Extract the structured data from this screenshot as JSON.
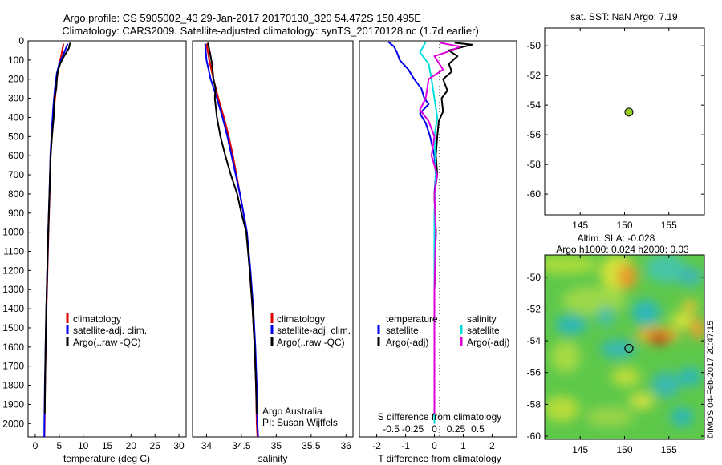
{
  "header": {
    "line1": "Argo profile: CS 5905002_43 29-Jan-2017 20170130_320 54.472S 150.495E",
    "line2": "Climatology: CARS2009. Satellite-adjusted climatology: synTS_20170128.nc (1.7d earlier)"
  },
  "depth_axis": {
    "ticks": [
      "0",
      "100",
      "200",
      "300",
      "400",
      "500",
      "600",
      "700",
      "800",
      "900",
      "1000",
      "1100",
      "1200",
      "1300",
      "1400",
      "1500",
      "1600",
      "1700",
      "1800",
      "1900",
      "2000"
    ]
  },
  "chart_data": [
    {
      "type": "line",
      "name": "temperature",
      "xlabel": "temperature (deg C)",
      "xlim": [
        -1.5,
        31.5
      ],
      "ylim": [
        0,
        2070
      ],
      "xticks": [
        0,
        5,
        10,
        15,
        20,
        25,
        30
      ],
      "xtick_labels": [
        "0",
        "5",
        "10",
        "15",
        "20",
        "25",
        "30"
      ],
      "legend": [
        "climatology",
        "satellite-adj. clim.",
        "Argo(..raw -QC)"
      ],
      "series": [
        {
          "name": "climatology",
          "color": "#dd0000",
          "points": [
            [
              5.9,
              15
            ],
            [
              5.4,
              80
            ],
            [
              4.9,
              130
            ],
            [
              4.6,
              180
            ],
            [
              4.3,
              260
            ],
            [
              3.95,
              350
            ],
            [
              3.6,
              450
            ],
            [
              3.2,
              600
            ],
            [
              3.0,
              800
            ],
            [
              2.75,
              1000
            ],
            [
              2.55,
              1200
            ],
            [
              2.35,
              1400
            ],
            [
              2.2,
              1600
            ],
            [
              2.05,
              1800
            ],
            [
              1.95,
              2000
            ],
            [
              1.92,
              2070
            ]
          ]
        },
        {
          "name": "satellite-adj. clim.",
          "color": "#0000ee",
          "points": [
            [
              6.8,
              15
            ],
            [
              5.8,
              75
            ],
            [
              5.0,
              120
            ],
            [
              4.5,
              170
            ],
            [
              4.1,
              250
            ],
            [
              3.75,
              350
            ],
            [
              3.5,
              450
            ],
            [
              3.15,
              600
            ],
            [
              2.95,
              800
            ],
            [
              2.7,
              1000
            ],
            [
              2.5,
              1200
            ],
            [
              2.3,
              1400
            ],
            [
              2.15,
              1600
            ],
            [
              2.0,
              1800
            ],
            [
              1.9,
              2000
            ],
            [
              1.88,
              2070
            ]
          ]
        },
        {
          "name": "Argo(..raw -QC)",
          "color": "#000000",
          "points": [
            [
              7.3,
              10
            ],
            [
              7.0,
              40
            ],
            [
              6.0,
              80
            ],
            [
              5.2,
              120
            ],
            [
              4.7,
              160
            ],
            [
              4.5,
              200
            ],
            [
              4.4,
              250
            ],
            [
              4.0,
              300
            ],
            [
              3.85,
              400
            ],
            [
              3.5,
              500
            ],
            [
              3.2,
              600
            ],
            [
              2.95,
              800
            ],
            [
              2.7,
              1000
            ],
            [
              2.5,
              1200
            ],
            [
              2.3,
              1400
            ],
            [
              2.15,
              1600
            ],
            [
              2.05,
              1800
            ],
            [
              1.98,
              1950
            ]
          ]
        }
      ]
    },
    {
      "type": "line",
      "name": "salinity",
      "xlabel": "salinity",
      "xlim": [
        33.8,
        36.1
      ],
      "ylim": [
        0,
        2070
      ],
      "xticks": [
        34,
        34.5,
        35,
        35.5,
        36
      ],
      "xtick_labels": [
        "34",
        "34.5",
        "35",
        "35.5",
        "36"
      ],
      "legend": [
        "climatology",
        "satellite-adj. clim.",
        "Argo(..raw -QC)"
      ],
      "annotations": [
        "Argo Australia",
        "PI: Susan Wijffels"
      ],
      "series": [
        {
          "name": "climatology",
          "color": "#dd0000",
          "points": [
            [
              34.0,
              15
            ],
            [
              34.04,
              100
            ],
            [
              34.1,
              200
            ],
            [
              34.17,
              300
            ],
            [
              34.25,
              400
            ],
            [
              34.32,
              500
            ],
            [
              34.38,
              600
            ],
            [
              34.43,
              700
            ],
            [
              34.48,
              800
            ],
            [
              34.53,
              900
            ],
            [
              34.58,
              1000
            ],
            [
              34.62,
              1200
            ],
            [
              34.66,
              1400
            ],
            [
              34.69,
              1600
            ],
            [
              34.71,
              1800
            ],
            [
              34.72,
              2000
            ],
            [
              34.73,
              2070
            ]
          ]
        },
        {
          "name": "satellite-adj. clim.",
          "color": "#0000ee",
          "points": [
            [
              33.98,
              15
            ],
            [
              34.0,
              100
            ],
            [
              34.06,
              200
            ],
            [
              34.15,
              300
            ],
            [
              34.23,
              400
            ],
            [
              34.3,
              500
            ],
            [
              34.36,
              600
            ],
            [
              34.42,
              700
            ],
            [
              34.48,
              800
            ],
            [
              34.53,
              900
            ],
            [
              34.58,
              1000
            ],
            [
              34.63,
              1200
            ],
            [
              34.67,
              1400
            ],
            [
              34.7,
              1600
            ],
            [
              34.72,
              1800
            ],
            [
              34.73,
              2000
            ],
            [
              34.74,
              2070
            ]
          ]
        },
        {
          "name": "Argo(..raw -QC)",
          "color": "#000000",
          "points": [
            [
              34.02,
              10
            ],
            [
              34.05,
              60
            ],
            [
              34.08,
              120
            ],
            [
              34.1,
              200
            ],
            [
              34.13,
              250
            ],
            [
              34.12,
              300
            ],
            [
              34.15,
              400
            ],
            [
              34.2,
              500
            ],
            [
              34.27,
              600
            ],
            [
              34.35,
              700
            ],
            [
              34.44,
              800
            ],
            [
              34.5,
              900
            ],
            [
              34.57,
              1000
            ],
            [
              34.62,
              1200
            ],
            [
              34.66,
              1400
            ],
            [
              34.69,
              1600
            ],
            [
              34.71,
              1800
            ],
            [
              34.72,
              1950
            ]
          ]
        }
      ]
    },
    {
      "type": "line",
      "name": "difference",
      "xlabel_bottom": "T difference from climatology",
      "xlabel_top": "S difference from climatology",
      "xlim": [
        -2.6,
        2.85
      ],
      "ylim": [
        0,
        2070
      ],
      "xticks_T": [
        -2,
        -1,
        0,
        1,
        2
      ],
      "xtick_labels_T": [
        "-2",
        "-1",
        "0",
        "1",
        "2"
      ],
      "xtick_labels_S": [
        "-0.5",
        "-0.25",
        "0",
        "0.25",
        "0.5"
      ],
      "xtick_positions_S": [
        -1.5,
        -0.75,
        0,
        0.75,
        1.5
      ],
      "legend_titles": [
        "temperature",
        "salinity"
      ],
      "legend_temperature": [
        "satellite",
        "Argo(-adj)"
      ],
      "legend_salinity": [
        "satellite",
        "Argo(-adj)"
      ],
      "zero_line": 0,
      "series": [
        {
          "name": "temperature satellite",
          "color": "#0000ee",
          "points": [
            [
              -1.6,
              5
            ],
            [
              -1.4,
              30
            ],
            [
              -1.3,
              60
            ],
            [
              -1.2,
              100
            ],
            [
              -0.9,
              150
            ],
            [
              -0.7,
              200
            ],
            [
              -0.45,
              250
            ],
            [
              -0.35,
              300
            ],
            [
              -0.2,
              330
            ],
            [
              -0.5,
              380
            ],
            [
              -0.3,
              430
            ],
            [
              -0.15,
              500
            ],
            [
              0.0,
              600
            ],
            [
              0.05,
              700
            ],
            [
              0.0,
              800
            ],
            [
              0.05,
              1000
            ],
            [
              0.0,
              1300
            ],
            [
              0.0,
              1700
            ],
            [
              0.0,
              2000
            ]
          ]
        },
        {
          "name": "temperature Argo(-adj)",
          "color": "#000000",
          "points": [
            [
              0.7,
              10
            ],
            [
              1.3,
              20
            ],
            [
              0.5,
              50
            ],
            [
              0.8,
              80
            ],
            [
              0.5,
              120
            ],
            [
              0.6,
              160
            ],
            [
              0.3,
              200
            ],
            [
              0.45,
              260
            ],
            [
              0.25,
              300
            ],
            [
              0.3,
              370
            ],
            [
              0.15,
              420
            ],
            [
              0.1,
              500
            ],
            [
              0.05,
              600
            ],
            [
              0.1,
              700
            ],
            [
              0.0,
              800
            ],
            [
              0.05,
              1000
            ],
            [
              0.0,
              1300
            ],
            [
              0.0,
              1700
            ],
            [
              0.0,
              1950
            ]
          ]
        },
        {
          "name": "salinity satellite",
          "color": "#00dddd",
          "points": [
            [
              -0.3,
              5
            ],
            [
              -0.5,
              60
            ],
            [
              -0.2,
              120
            ],
            [
              -0.1,
              200
            ],
            [
              0.0,
              300
            ],
            [
              0.1,
              400
            ],
            [
              0.0,
              500
            ],
            [
              0.05,
              700
            ],
            [
              0.0,
              900
            ],
            [
              0.0,
              1200
            ],
            [
              0.0,
              1600
            ],
            [
              0.0,
              2000
            ]
          ]
        },
        {
          "name": "salinity Argo(-adj)",
          "color": "#dd00dd",
          "points": [
            [
              0.2,
              10
            ],
            [
              0.9,
              30
            ],
            [
              0.4,
              60
            ],
            [
              0.0,
              80
            ],
            [
              0.3,
              150
            ],
            [
              -0.2,
              200
            ],
            [
              -0.3,
              300
            ],
            [
              -0.5,
              360
            ],
            [
              -0.2,
              420
            ],
            [
              0.0,
              500
            ],
            [
              -0.1,
              600
            ],
            [
              0.1,
              700
            ],
            [
              0.0,
              800
            ],
            [
              0.05,
              1000
            ],
            [
              0.0,
              1300
            ],
            [
              0.0,
              1700
            ],
            [
              0.0,
              1950
            ]
          ]
        }
      ]
    },
    {
      "type": "scatter",
      "name": "sat-sst-map",
      "title": "sat. SST: NaN Argo: 7.19",
      "xlim": [
        141,
        159
      ],
      "ylim": [
        -61.4,
        -48.8
      ],
      "xticks": [
        145,
        150,
        155
      ],
      "xtick_labels": [
        "145",
        "150",
        "155"
      ],
      "yticks": [
        -50,
        -52,
        -54,
        -56,
        -58,
        -60
      ],
      "ytick_labels": [
        "-50",
        "-52",
        "-54",
        "-56",
        "-58",
        "-60"
      ],
      "points": [
        {
          "lon": 150.495,
          "lat": -54.472,
          "color": "#99cc22"
        }
      ],
      "side_marker": "ı"
    },
    {
      "type": "heatmap",
      "name": "sla-map",
      "title1": "Altim. SLA: -0.028",
      "title2": "Argo h1000: 0.024 h2000: 0.03",
      "xlim": [
        141,
        159
      ],
      "ylim": [
        -60.2,
        -48.6
      ],
      "xticks": [
        145,
        150,
        155
      ],
      "xtick_labels": [
        "145",
        "150",
        "155"
      ],
      "yticks": [
        -50,
        -52,
        -54,
        -56,
        -58,
        -60
      ],
      "ytick_labels": [
        "-50",
        "-52",
        "-54",
        "-56",
        "-58",
        "-60"
      ],
      "points": [
        {
          "lon": 150.495,
          "lat": -54.472
        }
      ],
      "side_marker": "ı",
      "watermark": "©IMOS 04-Feb-2017 20:47:15"
    }
  ]
}
